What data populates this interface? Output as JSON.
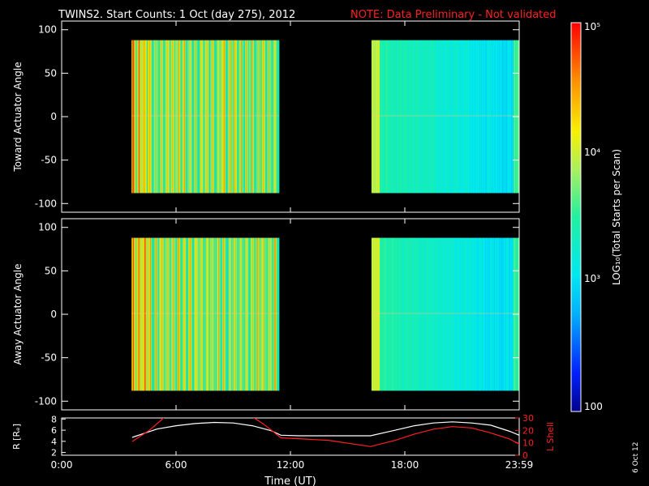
{
  "header": {
    "title": "TWINS2. Start Counts:  1 Oct (day 275), 2012",
    "note": "NOTE: Data Preliminary - Not validated",
    "note_color": "#ff2020"
  },
  "side_date": "6 Oct 12",
  "colorbar": {
    "label": "LOG₁₀(Total Starts per Scan)",
    "tick_labels": [
      "10⁵",
      "10⁴",
      "10³",
      "100"
    ],
    "tick_values": [
      100000,
      10000,
      1000,
      100
    ],
    "range": [
      100,
      100000
    ],
    "scale": "log"
  },
  "colors": {
    "background": "#000000",
    "axis": "#ffffff",
    "r_line": "#ffffff",
    "l_shell_line": "#ff2020"
  },
  "chart_data": [
    {
      "type": "heatmap",
      "panel": "toward",
      "ylabel": "Toward Actuator Angle",
      "ylim": [
        -110,
        110
      ],
      "yticks": [
        100,
        50,
        0,
        -50,
        -100
      ],
      "xlim": [
        0,
        24
      ],
      "data_y_range": [
        -88,
        88
      ],
      "data_time_blocks": [
        {
          "start": "03:40",
          "end": "11:25",
          "typical_log10": 3.8
        },
        {
          "start": "16:15",
          "end": "23:59",
          "typical_log10": 3.2
        }
      ]
    },
    {
      "type": "heatmap",
      "panel": "away",
      "ylabel": "Away Actuator Angle",
      "ylim": [
        -110,
        110
      ],
      "yticks": [
        100,
        50,
        0,
        -50,
        -100
      ],
      "xlim": [
        0,
        24
      ],
      "data_y_range": [
        -88,
        88
      ],
      "data_time_blocks": [
        {
          "start": "03:40",
          "end": "11:25",
          "typical_log10": 3.8
        },
        {
          "start": "16:15",
          "end": "23:59",
          "typical_log10": 3.2
        }
      ]
    },
    {
      "type": "line",
      "panel": "ephemeris",
      "xlabel": "Time (UT)",
      "xlim": [
        0,
        24
      ],
      "x_tick_labels": [
        "0:00",
        "6:00",
        "12:00",
        "18:00",
        "23:59"
      ],
      "x_tick_values": [
        0,
        6,
        12,
        18,
        24
      ],
      "left_axis": {
        "label": "R [Rₑ]",
        "ylim": [
          1.5,
          8.2
        ],
        "yticks": [
          2,
          4,
          6,
          8
        ]
      },
      "right_axis": {
        "label": "L Shell",
        "ylim": [
          0,
          30
        ],
        "yticks": [
          0,
          10,
          20,
          30
        ]
      },
      "series": [
        {
          "name": "R [Rₑ]",
          "axis": "left",
          "x": [
            3.7,
            5.0,
            6.0,
            7.0,
            8.0,
            9.0,
            10.0,
            11.0,
            11.5,
            12.5,
            14.0,
            16.2,
            17.5,
            18.5,
            19.5,
            20.5,
            21.5,
            22.5,
            23.5,
            24.0
          ],
          "y": [
            4.7,
            6.2,
            6.8,
            7.2,
            7.4,
            7.3,
            6.8,
            5.9,
            5.1,
            5.0,
            5.0,
            5.0,
            6.0,
            6.8,
            7.3,
            7.5,
            7.3,
            6.9,
            5.8,
            5.1
          ]
        },
        {
          "name": "L Shell",
          "axis": "right",
          "x": [
            3.7,
            4.6,
            5.2,
            5.4,
            10.0,
            10.6,
            11.5,
            14.0,
            16.2,
            17.5,
            18.5,
            19.5,
            20.5,
            21.5,
            22.5,
            23.5,
            24.0
          ],
          "y": [
            11,
            20,
            28,
            31,
            31,
            25,
            14,
            12,
            7,
            12,
            17,
            21,
            23,
            22,
            18,
            13,
            9
          ]
        }
      ]
    }
  ]
}
